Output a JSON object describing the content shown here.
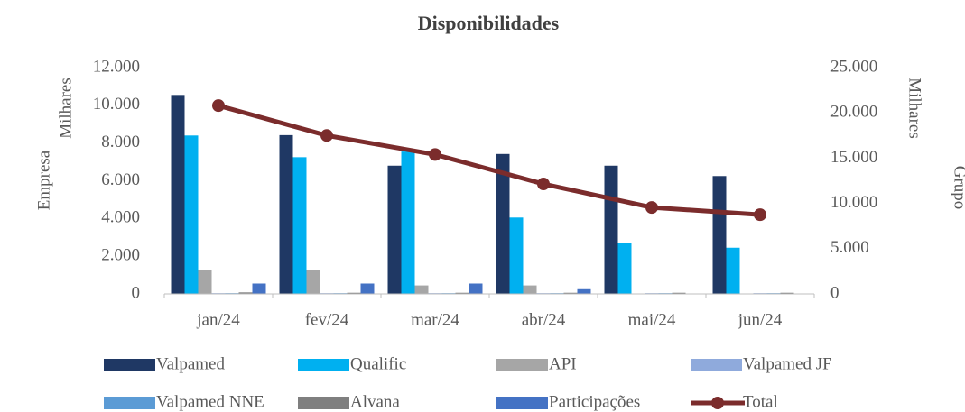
{
  "chart_data": {
    "type": "bar",
    "title": "Disponibilidades",
    "y_label": "Empresa",
    "y_units": "Milhares",
    "y2_label": "Grupo",
    "y2_units": "Milhares",
    "categories": [
      "jan/24",
      "fev/24",
      "mar/24",
      "abr/24",
      "mai/24",
      "jun/24"
    ],
    "ylim": [
      0,
      12000
    ],
    "yticks": [
      0,
      {
        "value": 2000,
        "label": "2.000"
      },
      {
        "value": 4000,
        "label": "4.000"
      },
      {
        "value": 6000,
        "label": "6.000"
      },
      {
        "value": 8000,
        "label": "8.000"
      },
      {
        "value": 10000,
        "label": "10.000"
      },
      {
        "value": 12000,
        "label": "12.000"
      }
    ],
    "y2lim": [
      0,
      25000
    ],
    "y2ticks": [
      0,
      {
        "value": 5000,
        "label": "5.000"
      },
      {
        "value": 10000,
        "label": "10.000"
      },
      {
        "value": 15000,
        "label": "15.000"
      },
      {
        "value": 20000,
        "label": "20.000"
      },
      {
        "value": 25000,
        "label": "25.000"
      }
    ],
    "series": [
      {
        "name": "Valpamed",
        "color": "#1f3864",
        "values": [
          10550,
          8420,
          6800,
          7420,
          6800,
          6250
        ]
      },
      {
        "name": "Qualific",
        "color": "#00b0f0",
        "values": [
          8400,
          7250,
          7550,
          4050,
          2700,
          2450
        ]
      },
      {
        "name": "API",
        "color": "#a6a6a6",
        "values": [
          1250,
          1250,
          450,
          450,
          20,
          20
        ]
      },
      {
        "name": "Valpamed JF",
        "color": "#8faadc",
        "values": [
          40,
          40,
          40,
          40,
          40,
          40
        ]
      },
      {
        "name": "Valpamed NNE",
        "color": "#5b9bd5",
        "values": [
          40,
          40,
          40,
          40,
          40,
          40
        ]
      },
      {
        "name": "Alvana",
        "color": "#7f7f7f",
        "values": [
          80,
          60,
          60,
          60,
          60,
          60
        ]
      },
      {
        "name": "Participações",
        "color": "#4472c4",
        "values": [
          550,
          550,
          550,
          250,
          0,
          0
        ]
      },
      {
        "name": "Total",
        "color": "#7b2c2c",
        "type": "line",
        "axis": "y2",
        "values": [
          20800,
          17500,
          15400,
          12150,
          9550,
          8750
        ]
      }
    ]
  }
}
